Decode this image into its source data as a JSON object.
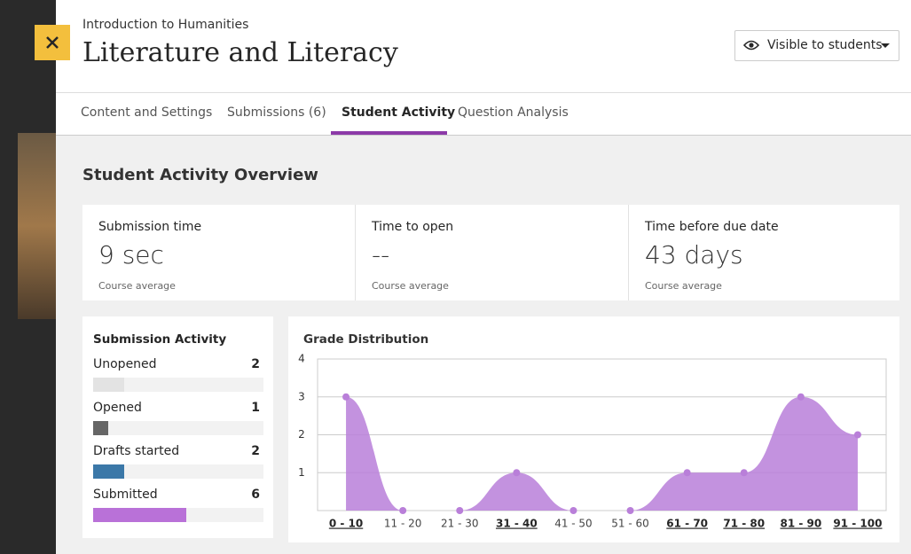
{
  "header": {
    "course": "Introduction to Humanities",
    "title": "Literature and Literacy",
    "visibility": "Visible to students"
  },
  "tabs": [
    "Content and Settings",
    "Submissions (6)",
    "Student Activity",
    "Question Analysis"
  ],
  "overview": {
    "title": "Student Activity Overview",
    "cards": [
      {
        "label": "Submission time",
        "value": "9 sec",
        "note": "Course average"
      },
      {
        "label": "Time to open",
        "value": "--",
        "note": "Course average"
      },
      {
        "label": "Time before due date",
        "value": "43 days",
        "note": "Course average"
      }
    ]
  },
  "submission_activity": {
    "title": "Submission Activity",
    "items": [
      {
        "label": "Unopened",
        "count": 2,
        "color": "#e3e3e3"
      },
      {
        "label": "Opened",
        "count": 1,
        "color": "#666666"
      },
      {
        "label": "Drafts started",
        "count": 2,
        "color": "#3b78a8"
      },
      {
        "label": "Submitted",
        "count": 6,
        "color": "#b971d8"
      }
    ]
  },
  "chart_data": {
    "type": "area",
    "title": "Grade Distribution",
    "categories": [
      "0 - 10",
      "11 - 20",
      "21 - 30",
      "31 - 40",
      "41 - 50",
      "51 - 60",
      "61 - 70",
      "71 - 80",
      "81 - 90",
      "91 - 100"
    ],
    "values": [
      3,
      0,
      0,
      1,
      0,
      0,
      1,
      1,
      3,
      2
    ],
    "color": "#b97fd9",
    "ylim": [
      0,
      4
    ],
    "yticks": [
      1,
      2,
      3,
      4
    ],
    "grid": true
  }
}
